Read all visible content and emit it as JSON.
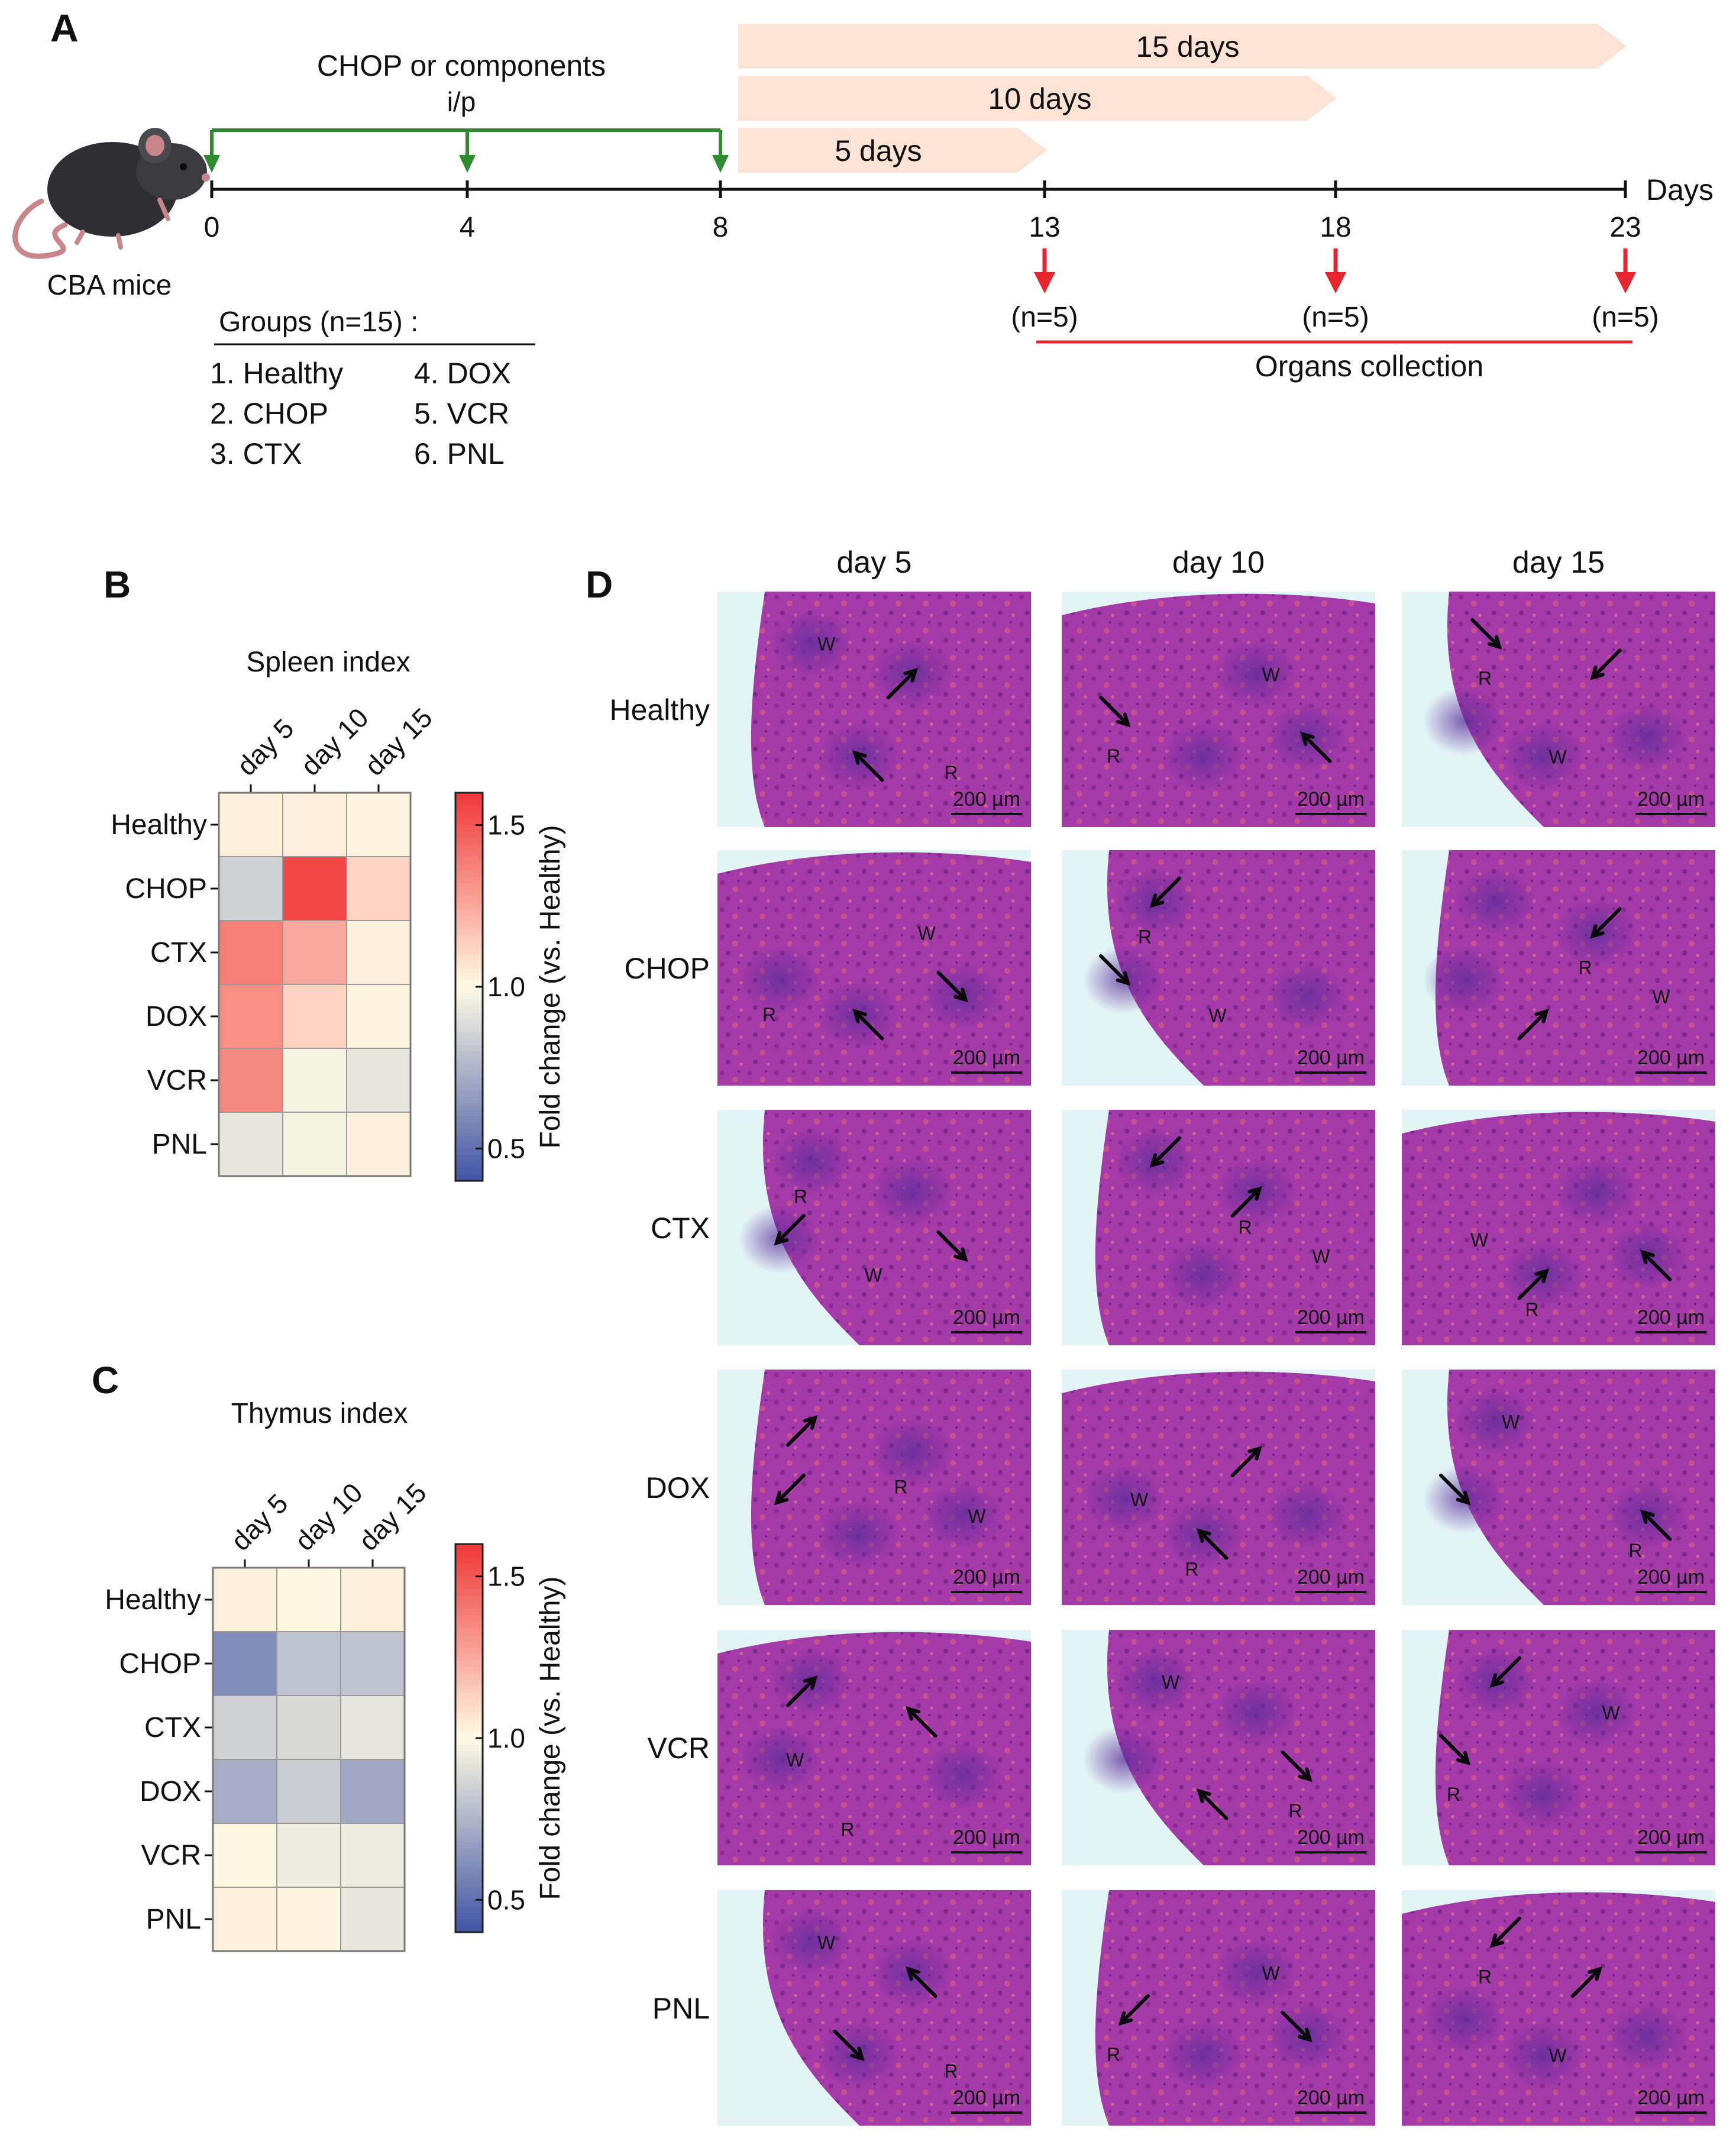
{
  "panel_a": {
    "label": "A",
    "mouse_caption": "CBA mice",
    "injection_label": "CHOP or components",
    "route_label": "i/p",
    "duration_bars": [
      "15 days",
      "10 days",
      "5 days"
    ],
    "axis_unit": "Days",
    "ticks": [
      "0",
      "4",
      "8",
      "13",
      "18",
      "23"
    ],
    "collection_counts": [
      "(n=5)",
      "(n=5)",
      "(n=5)"
    ],
    "collection_label": "Organs collection",
    "groups_title": "Groups (n=15) :",
    "groups": [
      "1. Healthy",
      "2. CHOP",
      "3. CTX",
      "4. DOX",
      "5. VCR",
      "6. PNL"
    ],
    "colors": {
      "injection": "#2e8b2e",
      "collection": "#e8242c",
      "bar": "#fde3d3"
    }
  },
  "chart_data": [
    {
      "type": "heatmap",
      "panel": "B",
      "title": "Spleen index",
      "x_categories": [
        "day 5",
        "day 10",
        "day 15"
      ],
      "y_categories": [
        "Healthy",
        "CHOP",
        "CTX",
        "DOX",
        "VCR",
        "PNL"
      ],
      "values": [
        [
          1.03,
          1.03,
          1.02
        ],
        [
          0.85,
          1.55,
          1.12
        ],
        [
          1.38,
          1.25,
          1.03
        ],
        [
          1.33,
          1.12,
          1.02
        ],
        [
          1.35,
          0.97,
          0.92
        ],
        [
          0.93,
          0.97,
          1.03
        ]
      ],
      "colorbar": {
        "label": "Fold change (vs. Healthy)",
        "range": [
          0.4,
          1.6
        ],
        "ticks": [
          "0.5",
          "1.0",
          "1.5"
        ]
      }
    },
    {
      "type": "heatmap",
      "panel": "C",
      "title": "Thymus index",
      "x_categories": [
        "day 5",
        "day 10",
        "day 15"
      ],
      "y_categories": [
        "Healthy",
        "CHOP",
        "CTX",
        "DOX",
        "VCR",
        "PNL"
      ],
      "values": [
        [
          1.03,
          1.01,
          1.03
        ],
        [
          0.6,
          0.8,
          0.8
        ],
        [
          0.85,
          0.88,
          0.92
        ],
        [
          0.72,
          0.83,
          0.7
        ],
        [
          1.01,
          0.95,
          0.95
        ],
        [
          1.03,
          1.02,
          0.93
        ]
      ],
      "colorbar": {
        "label": "Fold change (vs. Healthy)",
        "range": [
          0.4,
          1.6
        ],
        "ticks": [
          "0.5",
          "1.0",
          "1.5"
        ]
      }
    }
  ],
  "panel_d": {
    "label": "D",
    "columns": [
      "day 5",
      "day 10",
      "day 15"
    ],
    "rows": [
      "Healthy",
      "CHOP",
      "CTX",
      "DOX",
      "VCR",
      "PNL"
    ],
    "scale_bar": "200 µm",
    "zone_labels": {
      "white_pulp": "W",
      "red_pulp": "R"
    }
  }
}
